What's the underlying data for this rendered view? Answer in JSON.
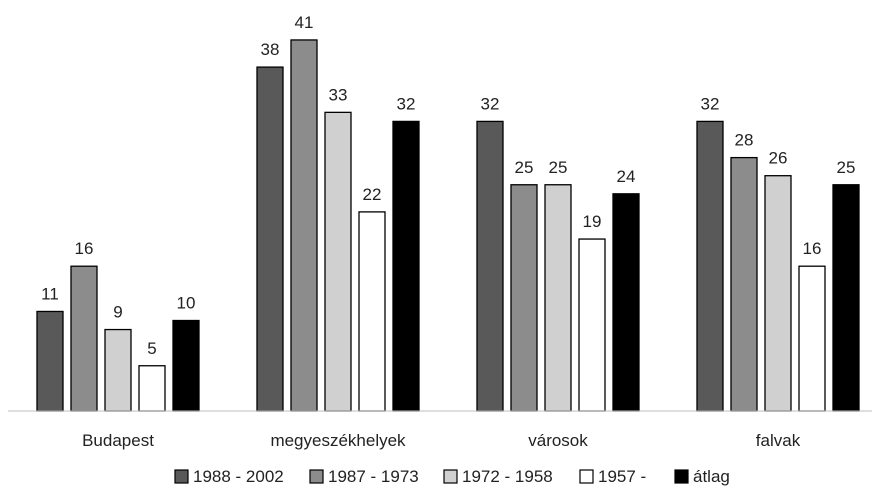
{
  "chart_data": {
    "type": "bar",
    "categories": [
      "Budapest",
      "megyeszékhelyek",
      "városok",
      "falvak"
    ],
    "series": [
      {
        "name": "1988 - 2002",
        "color": "#595959",
        "values": [
          11,
          38,
          32,
          32
        ]
      },
      {
        "name": "1987 - 1973",
        "color": "#8c8c8c",
        "values": [
          16,
          41,
          25,
          28
        ]
      },
      {
        "name": "1972 - 1958",
        "color": "#d0d0d0",
        "values": [
          9,
          33,
          25,
          26
        ]
      },
      {
        "name": "1957 -",
        "color": "#ffffff",
        "values": [
          5,
          22,
          19,
          16
        ]
      },
      {
        "name": "átlag",
        "color": "#000000",
        "values": [
          10,
          32,
          24,
          25
        ]
      }
    ],
    "ylim": [
      0,
      45
    ],
    "grid": false,
    "legend_position": "bottom",
    "data_labels": true,
    "bar_outline_color": "#000000"
  }
}
